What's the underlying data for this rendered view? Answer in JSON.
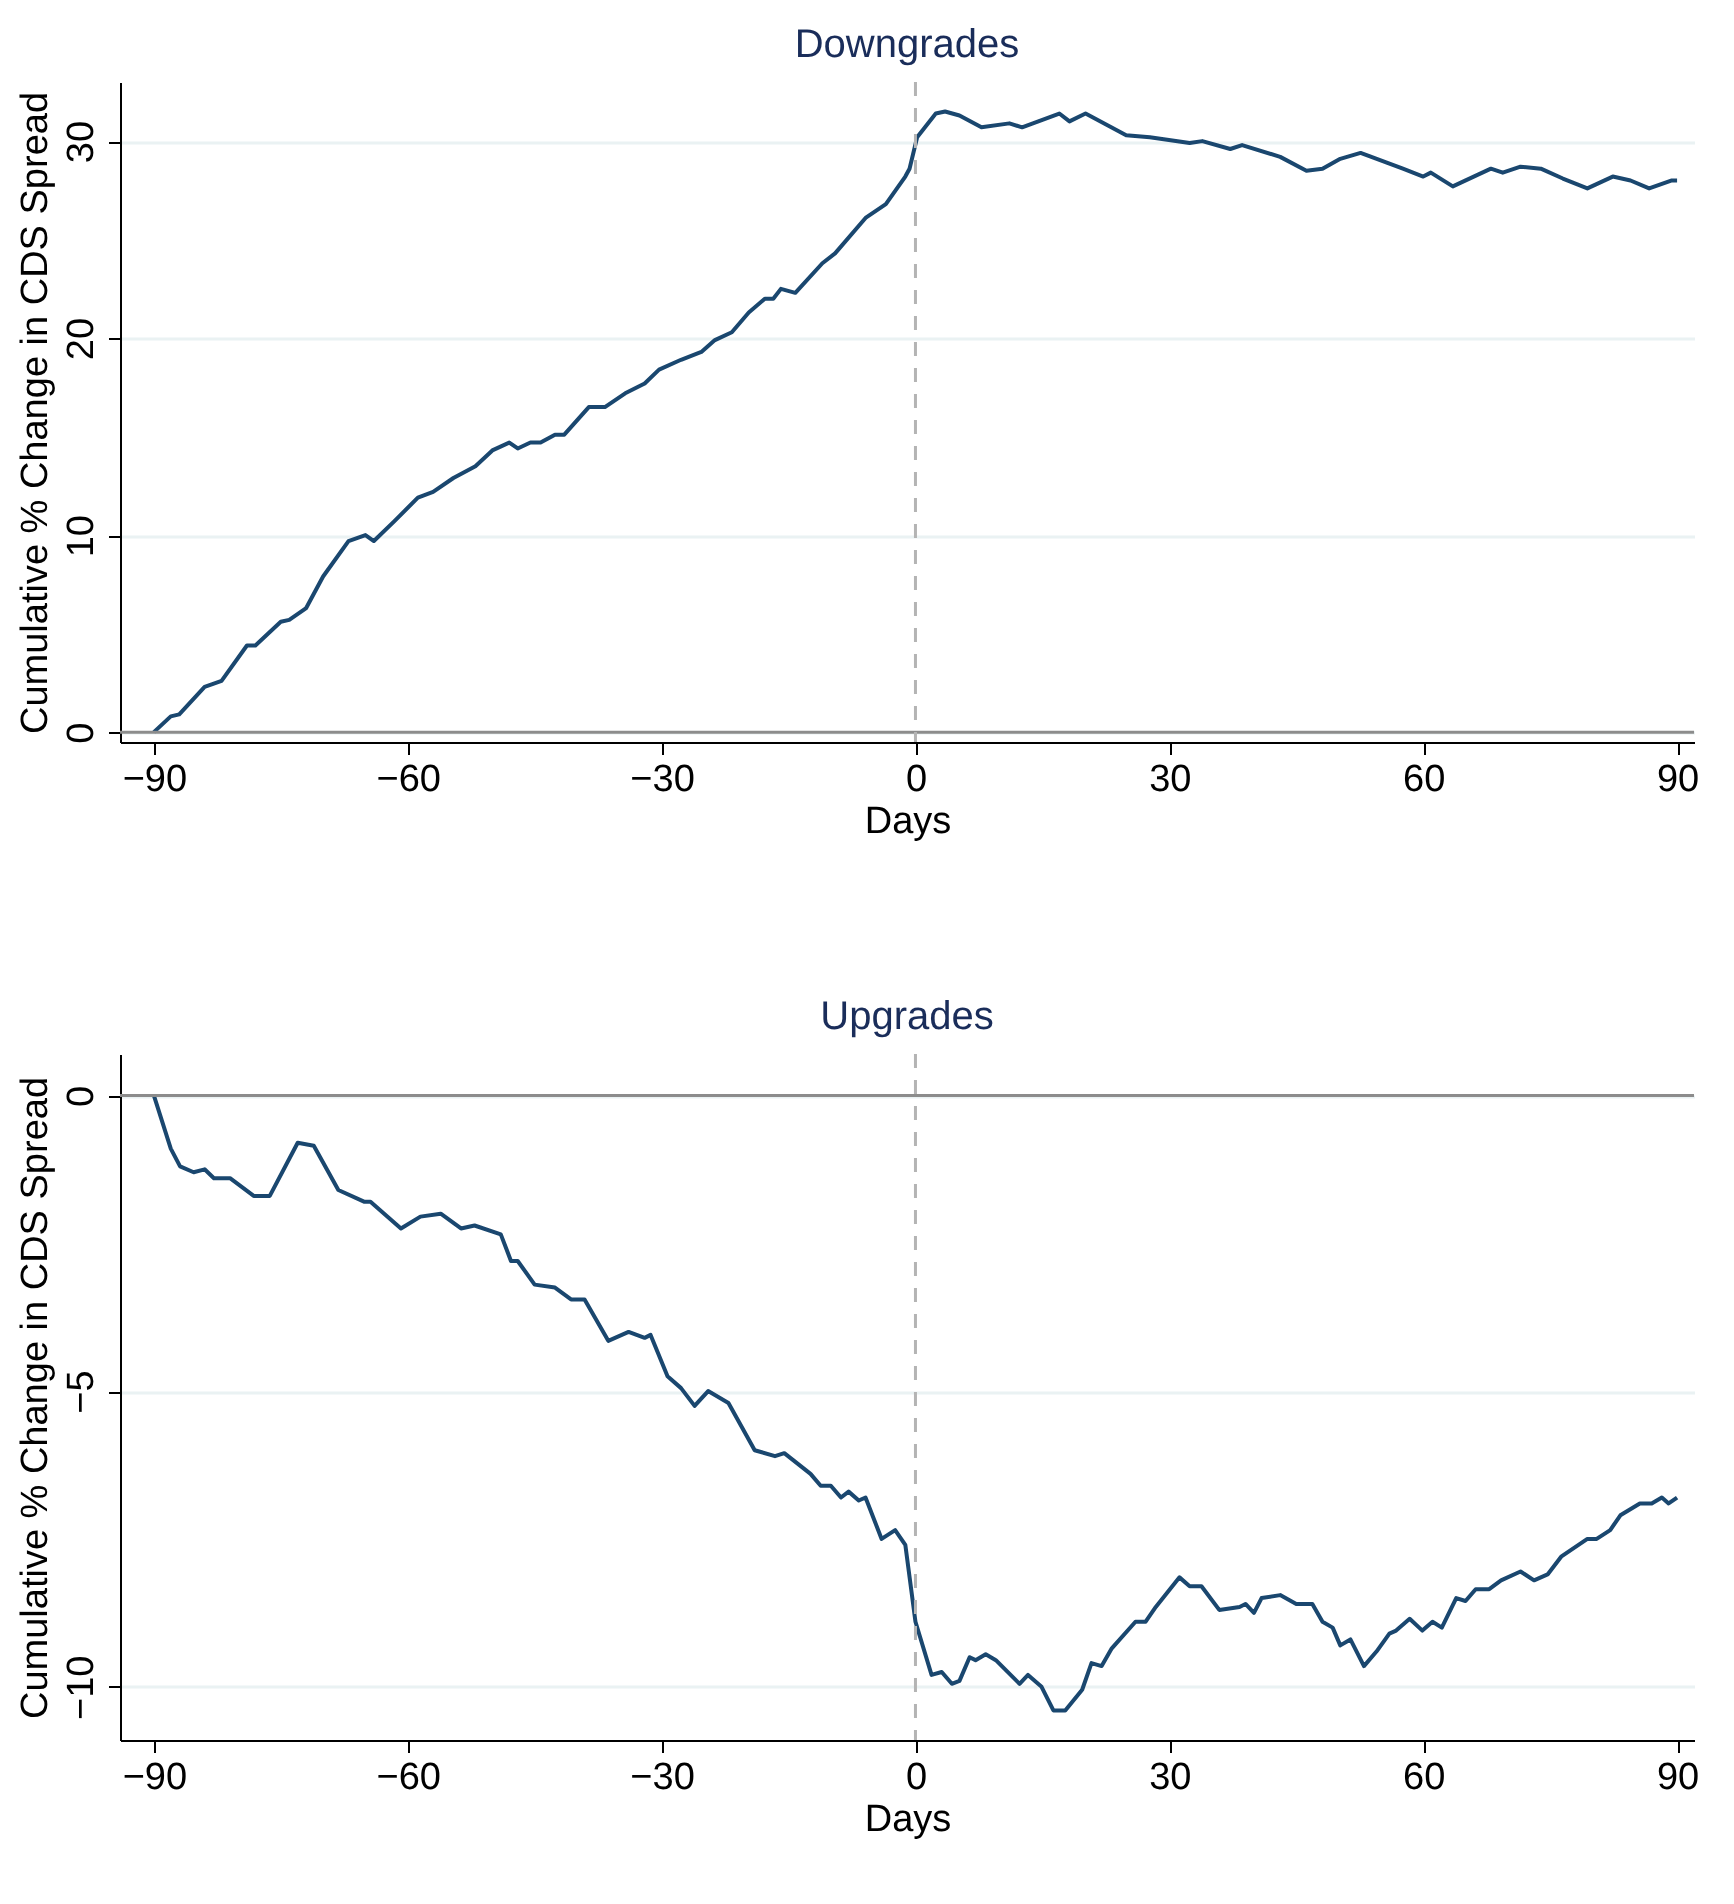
{
  "chart_data": [
    {
      "type": "line",
      "title": "Downgrades",
      "xlabel": "Days",
      "ylabel": "Cumulative % Change in CDS Spread",
      "xlim": [
        -94,
        92
      ],
      "xticks": [
        -90,
        -60,
        -30,
        0,
        30,
        60,
        90
      ],
      "ylim": [
        -0.5,
        33
      ],
      "yticks": [
        0,
        10,
        20,
        30
      ],
      "grid": "y",
      "ref_lines": [
        {
          "axis": "y",
          "value": 0,
          "color": "#8c8c8c",
          "line_style": "solid"
        },
        {
          "axis": "x",
          "value": 0,
          "color": "#b4b4b4",
          "line_style": "dashed"
        }
      ],
      "series": [
        {
          "color": "#1a476f",
          "x": [
            -90,
            -88,
            -87,
            -84,
            -82,
            -79,
            -78,
            -75,
            -74,
            -72,
            -70,
            -67,
            -65,
            -64,
            -61.6,
            -58.8,
            -57,
            -54.6,
            -52,
            -50,
            -48,
            -47,
            -45.5,
            -44.3,
            -42.6,
            -41.5,
            -38.6,
            -36.7,
            -34.3,
            -32,
            -30.3,
            -27.7,
            -25.3,
            -23.7,
            -21.7,
            -19.7,
            -17.8,
            -16.8,
            -15.9,
            -14.2,
            -11,
            -9.5,
            -5.9,
            -3.5,
            -1.2,
            -0.7,
            0.2,
            2.4,
            3.5,
            5.2,
            7.8,
            11.1,
            12.6,
            17,
            18.2,
            20.1,
            24.9,
            27.7,
            32.4,
            33.9,
            37.2,
            38.6,
            43.1,
            46.2,
            48.1,
            50.2,
            52.6,
            57.6,
            60,
            60.9,
            63.5,
            68,
            69.4,
            71.5,
            73.9,
            76.5,
            79.4,
            82.4,
            84.5,
            86.7,
            89.3,
            90
          ],
          "values": [
            0,
            0.8,
            0.9,
            2.3,
            2.6,
            4.4,
            4.4,
            5.6,
            5.7,
            6.3,
            7.9,
            9.7,
            10,
            9.7,
            10.7,
            11.9,
            12.2,
            12.9,
            13.5,
            14.3,
            14.7,
            14.4,
            14.7,
            14.7,
            15.1,
            15.1,
            16.5,
            16.5,
            17.2,
            17.7,
            18.4,
            18.9,
            19.3,
            19.9,
            20.3,
            21.3,
            22,
            22,
            22.5,
            22.3,
            23.8,
            24.3,
            26.1,
            26.8,
            28.2,
            28.6,
            30.2,
            31.4,
            31.5,
            31.3,
            30.7,
            30.9,
            30.7,
            31.4,
            31,
            31.4,
            30.3,
            30.2,
            29.9,
            30,
            29.6,
            29.8,
            29.2,
            28.5,
            28.6,
            29.1,
            29.4,
            28.6,
            28.2,
            28.4,
            27.7,
            28.6,
            28.4,
            28.7,
            28.6,
            28.1,
            27.6,
            28.2,
            28,
            27.6,
            28,
            28
          ]
        }
      ]
    },
    {
      "type": "line",
      "title": "Upgrades",
      "xlabel": "Days",
      "ylabel": "Cumulative % Change in CDS Spread",
      "xlim": [
        -94,
        92
      ],
      "xticks": [
        -90,
        -60,
        -30,
        0,
        30,
        60,
        90
      ],
      "ylim": [
        -10.9,
        0.7
      ],
      "yticks": [
        -10,
        -5,
        0
      ],
      "grid": "y",
      "ref_lines": [
        {
          "axis": "y",
          "value": 0,
          "color": "#8c8c8c",
          "line_style": "solid"
        },
        {
          "axis": "x",
          "value": 0,
          "color": "#b4b4b4",
          "line_style": "dashed"
        }
      ],
      "series": [
        {
          "color": "#1a476f",
          "x": [
            -90,
            -88,
            -86.9,
            -85.3,
            -84,
            -82.9,
            -81,
            -78.2,
            -76.3,
            -73,
            -71.1,
            -68.2,
            -65.1,
            -64.4,
            -60.8,
            -58.5,
            -56.1,
            -53.7,
            -52.1,
            -49,
            -47.8,
            -47,
            -45,
            -42.6,
            -40.7,
            -39.1,
            -36.3,
            -33.9,
            -32,
            -31.3,
            -29.3,
            -27.7,
            -26.1,
            -24.5,
            -22.1,
            -19,
            -16.6,
            -15.5,
            -12.4,
            -11.2,
            -10,
            -8.8,
            -7.9,
            -6.7,
            -5.9,
            -4,
            -2.4,
            -1.2,
            0,
            1.9,
            3.1,
            4.3,
            5.2,
            6.4,
            7.1,
            8.3,
            9.5,
            12.3,
            13.3,
            14.9,
            16.3,
            17.7,
            19.7,
            20.8,
            22,
            23.2,
            26,
            27.2,
            28.4,
            31.2,
            32.4,
            33.8,
            35.9,
            38.3,
            39,
            40,
            40.9,
            43.1,
            45,
            46.9,
            48.1,
            49.3,
            50.2,
            51.4,
            53,
            54.5,
            56,
            56.8,
            58.4,
            59.9,
            61.1,
            62.2,
            63.9,
            65,
            66.2,
            67.8,
            69.2,
            71.5,
            73.1,
            74.7,
            76.3,
            79.4,
            80.5,
            82.1,
            83.3,
            85.6,
            87,
            88.2,
            89,
            90
          ],
          "values": [
            0,
            -0.9,
            -1.2,
            -1.3,
            -1.25,
            -1.4,
            -1.4,
            -1.7,
            -1.7,
            -0.8,
            -0.85,
            -1.6,
            -1.8,
            -1.8,
            -2.25,
            -2.05,
            -2,
            -2.25,
            -2.2,
            -2.35,
            -2.8,
            -2.8,
            -3.2,
            -3.25,
            -3.45,
            -3.45,
            -4.15,
            -4,
            -4.1,
            -4.05,
            -4.75,
            -4.95,
            -5.25,
            -5,
            -5.2,
            -6,
            -6.1,
            -6.05,
            -6.4,
            -6.6,
            -6.6,
            -6.8,
            -6.7,
            -6.85,
            -6.8,
            -7.5,
            -7.35,
            -7.6,
            -8.9,
            -9.8,
            -9.75,
            -9.95,
            -9.9,
            -9.5,
            -9.55,
            -9.45,
            -9.55,
            -9.95,
            -9.8,
            -10,
            -10.4,
            -10.4,
            -10.05,
            -9.6,
            -9.65,
            -9.35,
            -8.9,
            -8.9,
            -8.65,
            -8.15,
            -8.3,
            -8.3,
            -8.7,
            -8.65,
            -8.6,
            -8.75,
            -8.5,
            -8.45,
            -8.6,
            -8.6,
            -8.9,
            -9,
            -9.3,
            -9.2,
            -9.65,
            -9.4,
            -9.1,
            -9.05,
            -8.85,
            -9.05,
            -8.9,
            -9,
            -8.5,
            -8.55,
            -8.35,
            -8.35,
            -8.2,
            -8.05,
            -8.2,
            -8.1,
            -7.8,
            -7.5,
            -7.5,
            -7.35,
            -7.1,
            -6.9,
            -6.9,
            -6.8,
            -6.9,
            -6.8
          ]
        }
      ]
    }
  ]
}
